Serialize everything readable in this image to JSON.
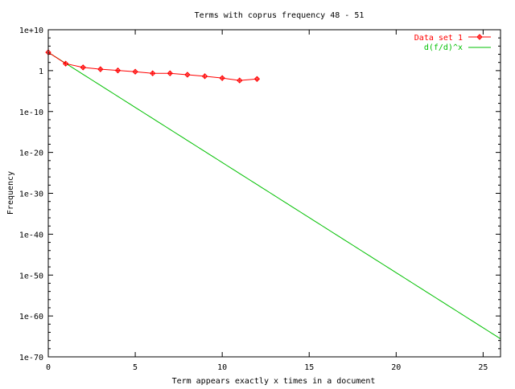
{
  "chart_data": {
    "type": "line",
    "title": "Terms with coprus frequency 48 - 51",
    "xlabel": "Term appears exactly x times in a document",
    "ylabel": "Frequency",
    "xlim": [
      0,
      26
    ],
    "ylim_log10": [
      -70,
      10
    ],
    "yscale": "log",
    "grid": false,
    "legend_placement": "top-right",
    "x_ticks": [
      0,
      5,
      10,
      15,
      20,
      25
    ],
    "x_tick_labels": [
      "0",
      "5",
      "10",
      "15",
      "20",
      "25"
    ],
    "y_ticks_log10": [
      10,
      0,
      -10,
      -20,
      -30,
      -40,
      -50,
      -60,
      -70
    ],
    "y_tick_labels": [
      "1e+10",
      "1",
      "1e-10",
      "1e-20",
      "1e-30",
      "1e-40",
      "1e-50",
      "1e-60",
      "1e-70"
    ],
    "series": [
      {
        "name": "Data set 1",
        "color": "#ff0000",
        "marker": "diamond-plus",
        "x": [
          0,
          1,
          2,
          3,
          4,
          5,
          6,
          7,
          8,
          9,
          10,
          11,
          12
        ],
        "y": [
          30000,
          51,
          6.1,
          2.2,
          1.1,
          0.55,
          0.22,
          0.22,
          0.1,
          0.043,
          0.015,
          0.004,
          0.009
        ]
      },
      {
        "name": "d(f/d)^x",
        "color": "#00c000",
        "function": {
          "d": 30000,
          "f_over_d": 0.00202
        },
        "x_range": [
          0,
          26
        ]
      }
    ]
  }
}
